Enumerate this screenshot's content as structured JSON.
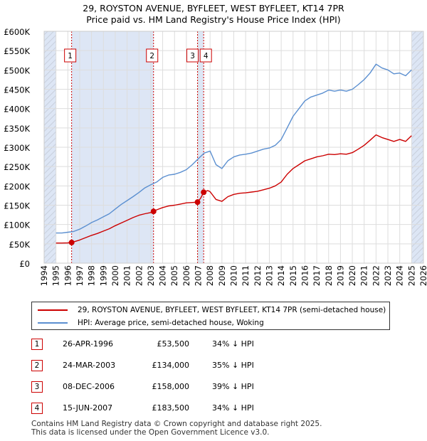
{
  "header": {
    "title_line1": "29, ROYSTON AVENUE, BYFLEET, WEST BYFLEET, KT14 7PR",
    "title_line2": "Price paid vs. HM Land Registry's House Price Index (HPI)"
  },
  "legend": {
    "property_label": "29, ROYSTON AVENUE, BYFLEET, WEST BYFLEET, KT14 7PR (semi-detached house)",
    "hpi_label": "HPI: Average price, semi-detached house, Woking"
  },
  "sales": [
    {
      "num": "1",
      "date": "26-APR-1996",
      "price": "£53,500",
      "hpi": "34% ↓ HPI"
    },
    {
      "num": "2",
      "date": "24-MAR-2003",
      "price": "£134,000",
      "hpi": "35% ↓ HPI"
    },
    {
      "num": "3",
      "date": "08-DEC-2006",
      "price": "£158,000",
      "hpi": "39% ↓ HPI"
    },
    {
      "num": "4",
      "date": "15-JUN-2007",
      "price": "£183,500",
      "hpi": "34% ↓ HPI"
    }
  ],
  "footer": {
    "line1": "Contains HM Land Registry data © Crown copyright and database right 2025.",
    "line2": "This data is licensed under the Open Government Licence v3.0."
  },
  "chart_data": {
    "type": "line",
    "title": "29, ROYSTON AVENUE, BYFLEET, WEST BYFLEET, KT14 7PR",
    "subtitle": "Price paid vs. HM Land Registry's House Price Index (HPI)",
    "xlabel": "",
    "ylabel": "",
    "xlim": [
      1994,
      2026
    ],
    "ylim": [
      0,
      600000
    ],
    "x_ticks": [
      "1994",
      "1995",
      "1996",
      "1997",
      "1998",
      "1999",
      "2000",
      "2001",
      "2002",
      "2003",
      "2004",
      "2005",
      "2006",
      "2007",
      "2008",
      "2009",
      "2010",
      "2011",
      "2012",
      "2013",
      "2014",
      "2015",
      "2016",
      "2017",
      "2018",
      "2019",
      "2020",
      "2021",
      "2022",
      "2023",
      "2024",
      "2025",
      "2026"
    ],
    "y_ticks": [
      "£0",
      "£50K",
      "£100K",
      "£150K",
      "£200K",
      "£250K",
      "£300K",
      "£350K",
      "£400K",
      "£450K",
      "£500K",
      "£550K",
      "£600K"
    ],
    "y_tick_values": [
      0,
      50000,
      100000,
      150000,
      200000,
      250000,
      300000,
      350000,
      400000,
      450000,
      500000,
      550000,
      600000
    ],
    "colors": {
      "property": "#cc0000",
      "hpi": "#5b8fd0",
      "shade": "#dde6f5",
      "marker": "#cc0000",
      "grid": "#dddddd"
    },
    "shaded_ranges": [
      [
        1994.0,
        1995.0
      ],
      [
        1996.32,
        2003.23
      ],
      [
        2006.94,
        2007.46
      ],
      [
        2025.0,
        2026.0
      ]
    ],
    "series": [
      {
        "name": "HPI: Average price, semi-detached house, Woking",
        "x": [
          1995.0,
          1995.5,
          1996.0,
          1996.5,
          1997.0,
          1997.5,
          1998.0,
          1998.5,
          1999.0,
          1999.5,
          2000.0,
          2000.5,
          2001.0,
          2001.5,
          2002.0,
          2002.5,
          2003.0,
          2003.5,
          2004.0,
          2004.5,
          2005.0,
          2005.5,
          2006.0,
          2006.5,
          2007.0,
          2007.5,
          2008.0,
          2008.5,
          2009.0,
          2009.5,
          2010.0,
          2010.5,
          2011.0,
          2011.5,
          2012.0,
          2012.5,
          2013.0,
          2013.5,
          2014.0,
          2014.5,
          2015.0,
          2015.5,
          2016.0,
          2016.5,
          2017.0,
          2017.5,
          2018.0,
          2018.5,
          2019.0,
          2019.5,
          2020.0,
          2020.5,
          2021.0,
          2021.5,
          2022.0,
          2022.5,
          2023.0,
          2023.5,
          2024.0,
          2024.5,
          2025.0
        ],
        "values": [
          78000,
          78000,
          80000,
          82000,
          88000,
          96000,
          105000,
          112000,
          120000,
          128000,
          140000,
          152000,
          162000,
          172000,
          183000,
          195000,
          203000,
          210000,
          222000,
          228000,
          230000,
          235000,
          242000,
          255000,
          270000,
          285000,
          290000,
          255000,
          245000,
          265000,
          275000,
          280000,
          282000,
          285000,
          290000,
          295000,
          298000,
          305000,
          320000,
          350000,
          380000,
          400000,
          420000,
          430000,
          435000,
          440000,
          448000,
          445000,
          448000,
          445000,
          450000,
          462000,
          475000,
          492000,
          515000,
          505000,
          500000,
          490000,
          492000,
          485000,
          500000
        ]
      },
      {
        "name": "29, ROYSTON AVENUE, BYFLEET, WEST BYFLEET, KT14 7PR (semi-detached house)",
        "x": [
          1995.0,
          1995.5,
          1996.0,
          1996.32,
          1996.5,
          1997.0,
          1997.5,
          1998.0,
          1998.5,
          1999.0,
          1999.5,
          2000.0,
          2000.5,
          2001.0,
          2001.5,
          2002.0,
          2002.5,
          2003.0,
          2003.23,
          2003.5,
          2004.0,
          2004.5,
          2005.0,
          2005.5,
          2006.0,
          2006.5,
          2006.94,
          2007.2,
          2007.46,
          2007.8,
          2008.0,
          2008.5,
          2009.0,
          2009.5,
          2010.0,
          2010.5,
          2011.0,
          2011.5,
          2012.0,
          2012.5,
          2013.0,
          2013.5,
          2014.0,
          2014.5,
          2015.0,
          2015.5,
          2016.0,
          2016.5,
          2017.0,
          2017.5,
          2018.0,
          2018.5,
          2019.0,
          2019.5,
          2020.0,
          2020.5,
          2021.0,
          2021.5,
          2022.0,
          2022.5,
          2023.0,
          2023.5,
          2024.0,
          2024.5,
          2025.0
        ],
        "values": [
          52000,
          52000,
          52500,
          53500,
          55000,
          60000,
          66000,
          72000,
          77000,
          83000,
          89000,
          97000,
          104000,
          111000,
          118000,
          124000,
          128000,
          131000,
          134000,
          138000,
          144000,
          148000,
          150000,
          153000,
          156000,
          157000,
          158000,
          168000,
          183500,
          188000,
          185000,
          165000,
          160000,
          172000,
          178000,
          181000,
          182000,
          184000,
          186000,
          190000,
          194000,
          200000,
          210000,
          230000,
          245000,
          255000,
          265000,
          270000,
          275000,
          278000,
          282000,
          281000,
          283000,
          282000,
          286000,
          295000,
          305000,
          318000,
          332000,
          325000,
          320000,
          315000,
          320000,
          315000,
          330000
        ]
      }
    ],
    "sales_points": [
      {
        "label": "1",
        "x": 1996.32,
        "value": 53500
      },
      {
        "label": "2",
        "x": 2003.23,
        "value": 134000
      },
      {
        "label": "3",
        "x": 2006.94,
        "value": 158000
      },
      {
        "label": "4",
        "x": 2007.46,
        "value": 183500
      }
    ]
  }
}
